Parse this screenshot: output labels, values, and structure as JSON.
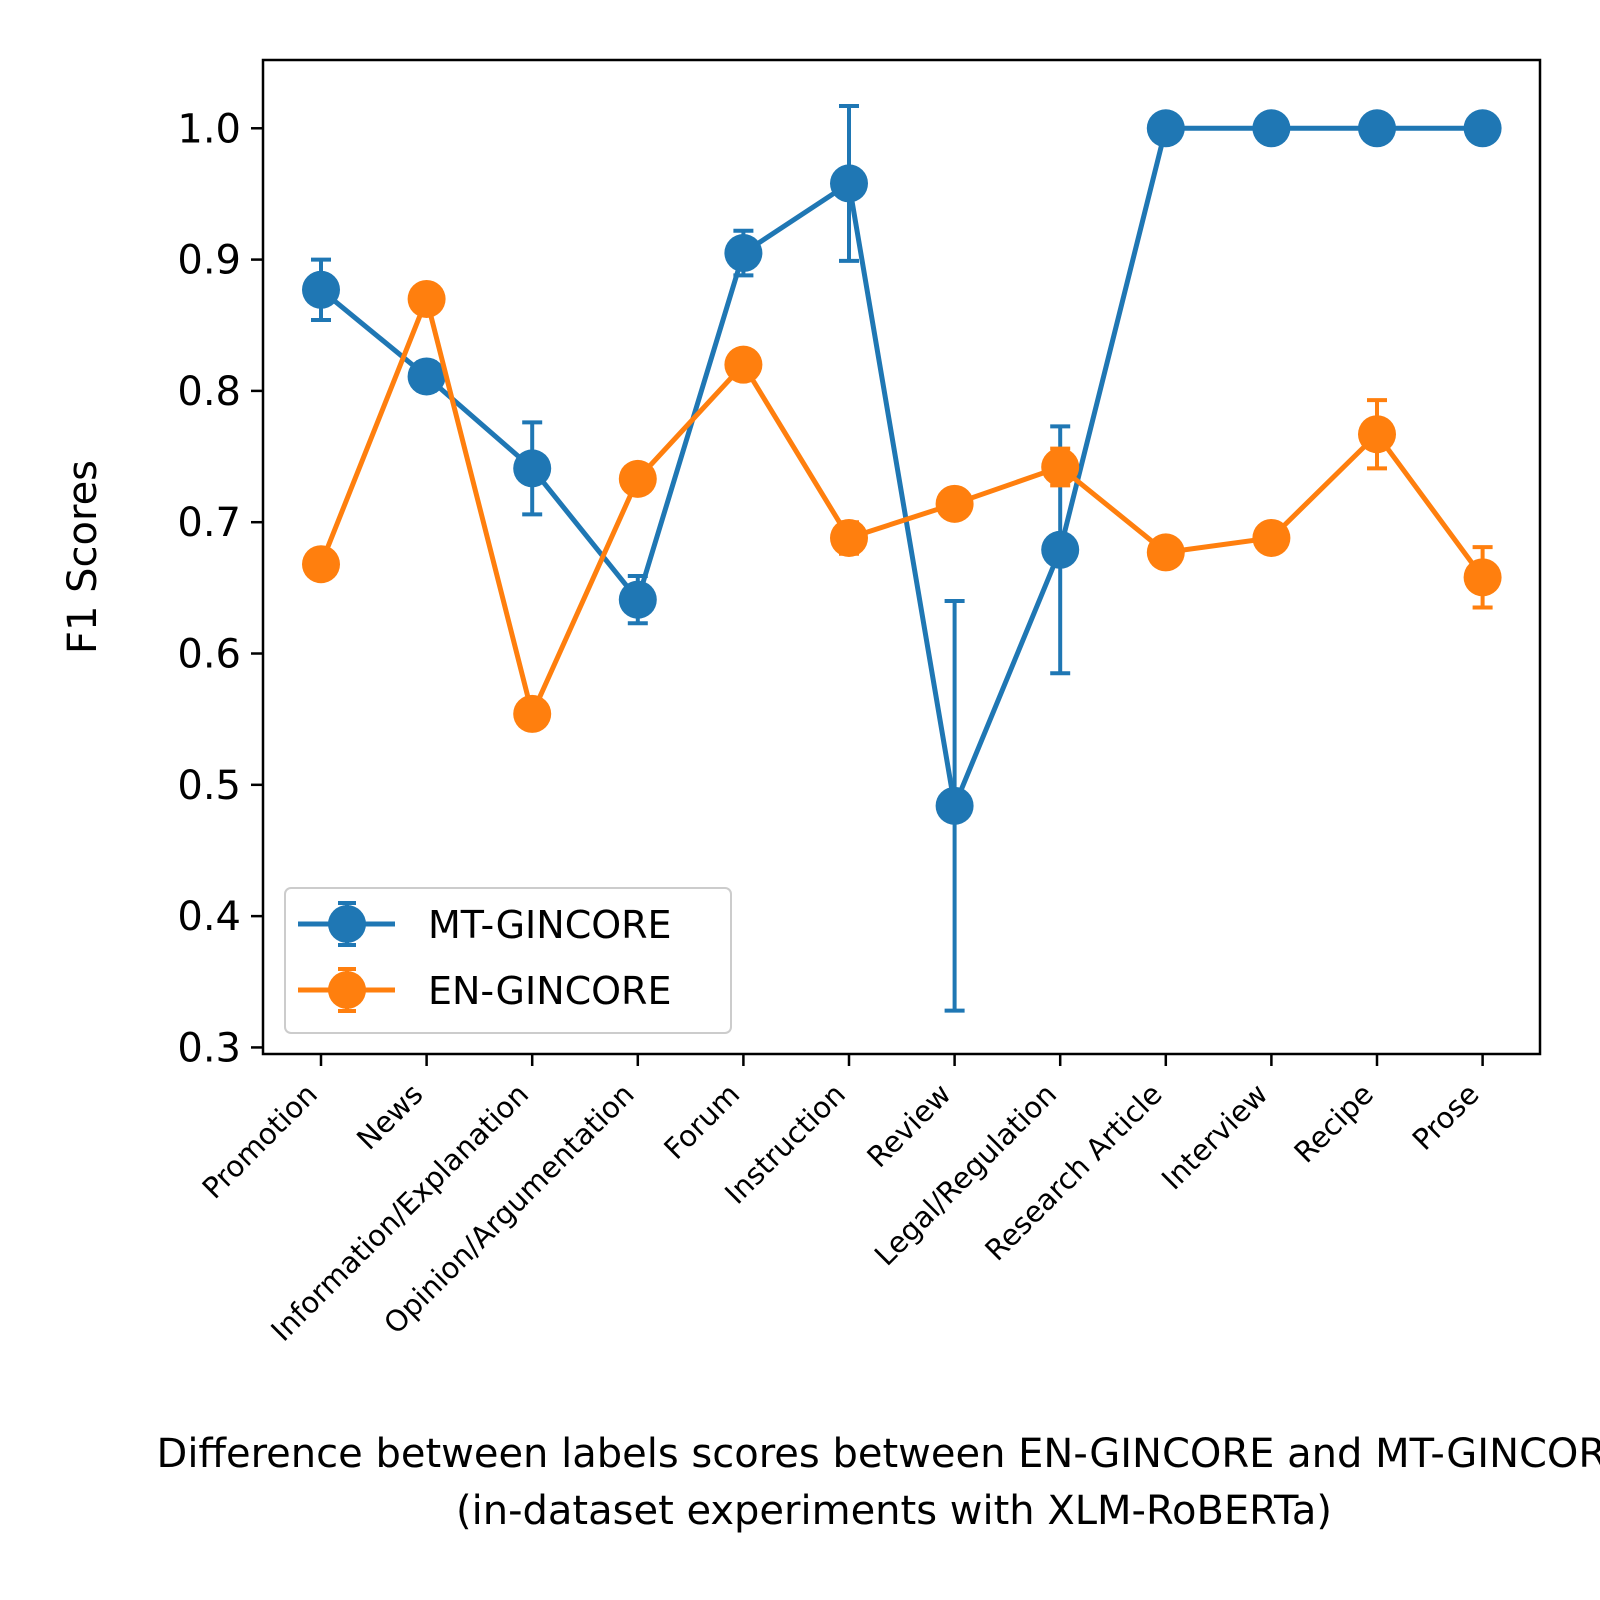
{
  "chart_data": {
    "type": "line",
    "categories": [
      "Promotion",
      "News",
      "Information/Explanation",
      "Opinion/Argumentation",
      "Forum",
      "Instruction",
      "Review",
      "Legal/Regulation",
      "Research Article",
      "Interview",
      "Recipe",
      "Prose"
    ],
    "series": [
      {
        "name": "MT-GINCORE",
        "color": "#1f77b4",
        "values": [
          0.877,
          0.811,
          0.741,
          0.641,
          0.905,
          0.958,
          0.484,
          0.679,
          1.0,
          1.0,
          1.0,
          1.0
        ],
        "errors": [
          0.023,
          0.011,
          0.035,
          0.018,
          0.017,
          0.059,
          0.156,
          0.094,
          0,
          0,
          0,
          0
        ]
      },
      {
        "name": "EN-GINCORE",
        "color": "#ff7f0e",
        "values": [
          0.668,
          0.87,
          0.554,
          0.733,
          0.82,
          0.688,
          0.714,
          0.742,
          0.677,
          0.688,
          0.767,
          0.658
        ],
        "errors": [
          0.004,
          0.0,
          0.0,
          0.0,
          0.0,
          0.012,
          0.0,
          0.014,
          0.01,
          0.0,
          0.026,
          0.023
        ]
      }
    ],
    "ylabel": "F1 Scores",
    "xlabel_lines": [
      "Difference between labels scores between EN-GINCORE and MT-GINCORE",
      "(in-dataset experiments with XLM-RoBERTa)"
    ],
    "ylim": [
      0.295,
      1.052
    ],
    "yticks": [
      "0.3",
      "0.4",
      "0.5",
      "0.6",
      "0.7",
      "0.8",
      "0.9",
      "1.0"
    ],
    "grid": false,
    "legend_position": "lower-left"
  }
}
